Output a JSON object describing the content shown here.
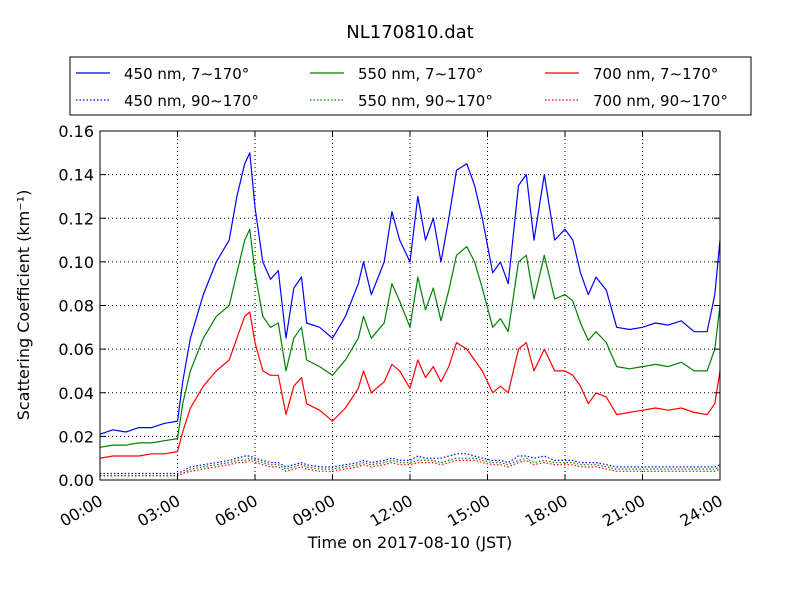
{
  "chart_data": {
    "type": "line",
    "title": "NL170810.dat",
    "xlabel": "Time on 2017-08-10 (JST)",
    "ylabel": "Scattering Coefficient (km⁻¹)",
    "xlim": [
      0,
      24
    ],
    "ylim": [
      0,
      0.16
    ],
    "xticks": [
      0,
      3,
      6,
      9,
      12,
      15,
      18,
      21,
      24
    ],
    "xtick_labels": [
      "00:00",
      "03:00",
      "06:00",
      "09:00",
      "12:00",
      "15:00",
      "18:00",
      "21:00",
      "24:00"
    ],
    "yticks": [
      0,
      0.02,
      0.04,
      0.06,
      0.08,
      0.1,
      0.12,
      0.14,
      0.16
    ],
    "ytick_labels": [
      "0.00",
      "0.02",
      "0.04",
      "0.06",
      "0.08",
      "0.10",
      "0.12",
      "0.14",
      "0.16"
    ],
    "grid": true,
    "legend_position": "top, above plot, 3 columns",
    "x": [
      0,
      0.5,
      1,
      1.5,
      2,
      2.5,
      3,
      3.2,
      3.5,
      4,
      4.5,
      5,
      5.3,
      5.6,
      5.8,
      6,
      6.3,
      6.6,
      6.9,
      7.2,
      7.5,
      7.8,
      8,
      8.5,
      9,
      9.5,
      10,
      10.2,
      10.5,
      11,
      11.3,
      11.6,
      12,
      12.3,
      12.6,
      12.9,
      13.2,
      13.5,
      13.8,
      14.2,
      14.5,
      14.8,
      15.2,
      15.5,
      15.8,
      16.2,
      16.5,
      16.8,
      17.2,
      17.6,
      18,
      18.3,
      18.6,
      18.9,
      19.2,
      19.6,
      20,
      20.5,
      21,
      21.5,
      22,
      22.5,
      23,
      23.5,
      23.8,
      24
    ],
    "series": [
      {
        "name": "450 nm, 7∼170°",
        "color": "#0000ff",
        "style": "solid",
        "values": [
          0.021,
          0.023,
          0.022,
          0.024,
          0.024,
          0.026,
          0.027,
          0.045,
          0.065,
          0.085,
          0.1,
          0.11,
          0.13,
          0.145,
          0.15,
          0.125,
          0.1,
          0.092,
          0.096,
          0.065,
          0.088,
          0.093,
          0.072,
          0.07,
          0.065,
          0.075,
          0.09,
          0.1,
          0.085,
          0.1,
          0.123,
          0.11,
          0.1,
          0.13,
          0.11,
          0.12,
          0.1,
          0.12,
          0.142,
          0.145,
          0.135,
          0.12,
          0.095,
          0.1,
          0.09,
          0.135,
          0.14,
          0.11,
          0.14,
          0.11,
          0.115,
          0.11,
          0.095,
          0.085,
          0.093,
          0.087,
          0.07,
          0.069,
          0.07,
          0.072,
          0.071,
          0.073,
          0.068,
          0.068,
          0.085,
          0.11
        ]
      },
      {
        "name": "450 nm, 90∼170°",
        "color": "#0000ff",
        "style": "dotted",
        "values": [
          0.003,
          0.003,
          0.003,
          0.003,
          0.003,
          0.003,
          0.003,
          0.004,
          0.006,
          0.007,
          0.008,
          0.009,
          0.01,
          0.011,
          0.011,
          0.01,
          0.009,
          0.008,
          0.008,
          0.006,
          0.007,
          0.008,
          0.007,
          0.006,
          0.006,
          0.007,
          0.008,
          0.009,
          0.008,
          0.009,
          0.01,
          0.009,
          0.009,
          0.011,
          0.01,
          0.01,
          0.01,
          0.011,
          0.012,
          0.012,
          0.011,
          0.01,
          0.009,
          0.009,
          0.008,
          0.011,
          0.011,
          0.01,
          0.011,
          0.009,
          0.009,
          0.009,
          0.008,
          0.008,
          0.008,
          0.007,
          0.006,
          0.006,
          0.006,
          0.006,
          0.006,
          0.006,
          0.006,
          0.006,
          0.006,
          0.007
        ]
      },
      {
        "name": "550 nm, 7∼170°",
        "color": "#008000",
        "style": "solid",
        "values": [
          0.015,
          0.016,
          0.016,
          0.017,
          0.017,
          0.018,
          0.019,
          0.035,
          0.05,
          0.065,
          0.075,
          0.08,
          0.095,
          0.11,
          0.115,
          0.095,
          0.075,
          0.07,
          0.072,
          0.05,
          0.065,
          0.07,
          0.055,
          0.052,
          0.048,
          0.055,
          0.065,
          0.075,
          0.065,
          0.072,
          0.09,
          0.082,
          0.07,
          0.093,
          0.078,
          0.088,
          0.073,
          0.087,
          0.103,
          0.107,
          0.1,
          0.088,
          0.07,
          0.074,
          0.068,
          0.1,
          0.103,
          0.083,
          0.103,
          0.083,
          0.085,
          0.082,
          0.072,
          0.064,
          0.068,
          0.063,
          0.052,
          0.051,
          0.052,
          0.053,
          0.052,
          0.054,
          0.05,
          0.05,
          0.06,
          0.08
        ]
      },
      {
        "name": "550 nm, 90∼170°",
        "color": "#008000",
        "style": "dotted",
        "values": [
          0.002,
          0.002,
          0.002,
          0.002,
          0.002,
          0.002,
          0.002,
          0.003,
          0.005,
          0.006,
          0.007,
          0.008,
          0.009,
          0.009,
          0.01,
          0.009,
          0.008,
          0.007,
          0.007,
          0.005,
          0.006,
          0.007,
          0.006,
          0.005,
          0.005,
          0.006,
          0.007,
          0.008,
          0.007,
          0.008,
          0.009,
          0.008,
          0.008,
          0.009,
          0.009,
          0.009,
          0.008,
          0.009,
          0.01,
          0.01,
          0.01,
          0.009,
          0.008,
          0.008,
          0.007,
          0.009,
          0.01,
          0.008,
          0.009,
          0.008,
          0.008,
          0.008,
          0.007,
          0.007,
          0.007,
          0.006,
          0.005,
          0.005,
          0.005,
          0.005,
          0.005,
          0.005,
          0.005,
          0.005,
          0.005,
          0.006
        ]
      },
      {
        "name": "700 nm, 7∼170°",
        "color": "#ff0000",
        "style": "solid",
        "values": [
          0.01,
          0.011,
          0.011,
          0.011,
          0.012,
          0.012,
          0.013,
          0.022,
          0.033,
          0.043,
          0.05,
          0.055,
          0.065,
          0.075,
          0.077,
          0.063,
          0.05,
          0.048,
          0.048,
          0.03,
          0.043,
          0.047,
          0.035,
          0.032,
          0.027,
          0.033,
          0.042,
          0.05,
          0.04,
          0.045,
          0.053,
          0.05,
          0.042,
          0.055,
          0.047,
          0.052,
          0.045,
          0.052,
          0.063,
          0.06,
          0.055,
          0.05,
          0.04,
          0.043,
          0.04,
          0.06,
          0.063,
          0.05,
          0.06,
          0.05,
          0.05,
          0.048,
          0.043,
          0.035,
          0.04,
          0.038,
          0.03,
          0.031,
          0.032,
          0.033,
          0.032,
          0.033,
          0.031,
          0.03,
          0.035,
          0.05
        ]
      },
      {
        "name": "700 nm, 90∼170°",
        "color": "#ff0000",
        "style": "dotted",
        "values": [
          0.002,
          0.002,
          0.002,
          0.002,
          0.002,
          0.002,
          0.002,
          0.003,
          0.004,
          0.005,
          0.006,
          0.007,
          0.008,
          0.008,
          0.009,
          0.008,
          0.007,
          0.006,
          0.006,
          0.004,
          0.005,
          0.006,
          0.005,
          0.004,
          0.004,
          0.005,
          0.006,
          0.007,
          0.006,
          0.007,
          0.008,
          0.007,
          0.007,
          0.008,
          0.008,
          0.008,
          0.007,
          0.008,
          0.009,
          0.009,
          0.009,
          0.008,
          0.007,
          0.007,
          0.006,
          0.008,
          0.009,
          0.007,
          0.008,
          0.007,
          0.007,
          0.007,
          0.006,
          0.006,
          0.006,
          0.005,
          0.004,
          0.004,
          0.004,
          0.004,
          0.004,
          0.004,
          0.004,
          0.004,
          0.004,
          0.005
        ]
      }
    ]
  }
}
